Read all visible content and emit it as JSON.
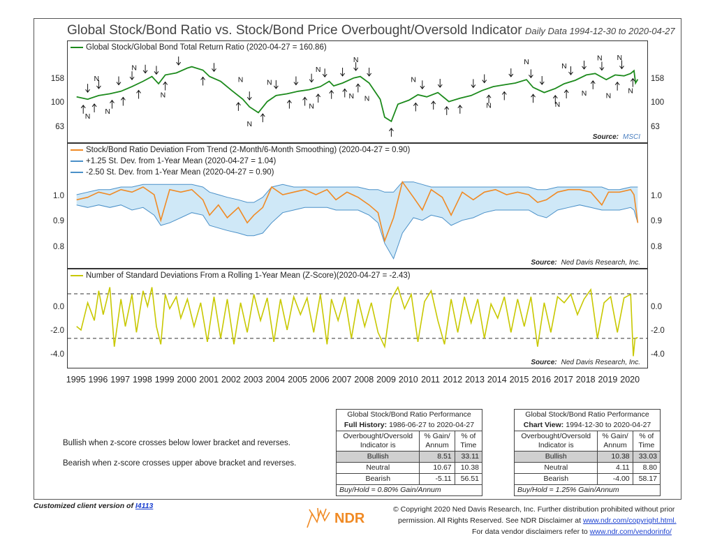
{
  "header": {
    "title": "Global Stock/Bond Ratio vs. Stock/Bond Price Overbought/Oversold Indicator",
    "date_range": "Daily Data 1994-12-30 to 2020-04-27"
  },
  "colors": {
    "green": "#1c8a1c",
    "orange": "#f08a24",
    "blue": "#4a90c8",
    "fill": "#cfe8f7",
    "yellow": "#c8c800"
  },
  "chart_data": [
    {
      "type": "line",
      "panel": "top",
      "legend": "Global Stock/Global Bond Total Return Ratio (2020-04-27 = 160.86)",
      "source_label": "Source:",
      "source_name": "MSCI",
      "y_scale": "log",
      "yticks": [
        "158",
        "100",
        "63"
      ],
      "ylim": [
        55,
        230
      ],
      "series": [
        {
          "name": "Global Stock/Global Bond Total Return Ratio",
          "x": [
            1995.0,
            1995.5,
            1996.0,
            1996.5,
            1997.0,
            1997.5,
            1998.0,
            1998.4,
            1998.7,
            1999.0,
            1999.5,
            2000.0,
            2000.2,
            2000.7,
            2001.0,
            2001.5,
            2002.0,
            2002.5,
            2002.8,
            2003.2,
            2003.6,
            2004.0,
            2004.5,
            2005.0,
            2005.5,
            2006.0,
            2006.4,
            2006.6,
            2007.0,
            2007.5,
            2007.8,
            2008.2,
            2008.7,
            2008.9,
            2009.2,
            2009.5,
            2010.0,
            2010.4,
            2010.8,
            2011.3,
            2011.8,
            2012.3,
            2012.8,
            2013.3,
            2013.8,
            2014.3,
            2014.8,
            2015.3,
            2015.6,
            2016.1,
            2016.6,
            2017.0,
            2017.5,
            2018.0,
            2018.4,
            2018.9,
            2019.3,
            2019.7,
            2020.0,
            2020.15,
            2020.22,
            2020.32
          ],
          "values": [
            115,
            110,
            118,
            122,
            128,
            140,
            155,
            170,
            148,
            175,
            182,
            200,
            205,
            192,
            170,
            155,
            130,
            110,
            95,
            85,
            105,
            118,
            122,
            128,
            132,
            140,
            155,
            142,
            150,
            165,
            170,
            150,
            110,
            78,
            72,
            100,
            108,
            120,
            115,
            125,
            105,
            112,
            118,
            130,
            140,
            145,
            150,
            160,
            138,
            125,
            135,
            148,
            158,
            175,
            180,
            160,
            175,
            172,
            180,
            190,
            150,
            161
          ]
        }
      ],
      "markers_up_years": [
        1995.3,
        1995.8,
        1996.6,
        1997.1,
        1997.8,
        1999.0,
        2000.7,
        2002.3,
        2003.4,
        2004.6,
        2005.3,
        2005.9,
        2006.5,
        2007.1,
        2007.7,
        2009.2,
        2010.3,
        2011.1,
        2011.7,
        2012.3,
        2013.6,
        2014.3,
        2015.6,
        2016.6,
        2017.1,
        2018.3,
        2019.4,
        2020.1
      ],
      "markers_down_years": [
        1995.5,
        1996.0,
        1996.9,
        1997.5,
        1998.1,
        1998.6,
        1999.6,
        2001.2,
        2002.8,
        2004.0,
        2004.9,
        2005.6,
        2006.2,
        2007.0,
        2007.6,
        2008.2,
        2010.6,
        2011.4,
        2012.9,
        2013.4,
        2014.6,
        2015.5,
        2016.0,
        2017.3,
        2017.9,
        2018.7,
        2019.6
      ],
      "n_label": "N",
      "n_years": [
        1995.5,
        1995.9,
        1996.4,
        1997.6,
        1998.9,
        2002.4,
        2002.8,
        2003.7,
        2005.6,
        2005.9,
        2007.4,
        2007.6,
        2008.1,
        2010.2,
        2013.6,
        2015.3,
        2016.7,
        2017.0,
        2017.9,
        2018.6,
        2019.0,
        2019.5,
        2020.0
      ]
    },
    {
      "type": "line",
      "panel": "middle",
      "legends": [
        "Stock/Bond Ratio Deviation From Trend (2-Month/6-Month Smoothing) (2020-04-27 = 0.90)",
        "+1.25 St. Dev. from 1-Year Mean (2020-04-27 = 1.04)",
        "-2.50 St. Dev. from 1-Year Mean (2020-04-27 = 0.90)"
      ],
      "source_label": "Source:",
      "source_name": "Ned Davis Research, Inc.",
      "yticks": [
        "1.0",
        "0.9",
        "0.8"
      ],
      "ylim": [
        0.74,
        1.1
      ],
      "x": [
        1995.0,
        1995.5,
        1996.0,
        1996.5,
        1997.0,
        1997.5,
        1998.0,
        1998.5,
        1998.8,
        1999.2,
        1999.7,
        2000.2,
        2000.7,
        2001.0,
        2001.4,
        2001.8,
        2002.3,
        2002.7,
        2003.0,
        2003.4,
        2003.8,
        2004.3,
        2004.8,
        2005.3,
        2005.8,
        2006.3,
        2006.7,
        2007.2,
        2007.7,
        2008.2,
        2008.6,
        2008.9,
        2009.3,
        2009.7,
        2010.2,
        2010.6,
        2011.0,
        2011.5,
        2011.9,
        2012.4,
        2012.9,
        2013.4,
        2013.9,
        2014.4,
        2014.9,
        2015.4,
        2015.8,
        2016.2,
        2016.7,
        2017.2,
        2017.7,
        2018.2,
        2018.7,
        2019.0,
        2019.5,
        2020.0,
        2020.15,
        2020.32
      ],
      "series": [
        {
          "name": "Stock/Bond Ratio Deviation From Trend (2-Month/6-Month Smoothing)",
          "values": [
            0.99,
            1.0,
            1.02,
            1.01,
            1.03,
            1.02,
            1.04,
            1.01,
            0.91,
            1.03,
            1.02,
            1.03,
            0.99,
            0.93,
            0.97,
            0.92,
            0.96,
            0.9,
            0.93,
            0.96,
            1.04,
            1.01,
            1.02,
            1.03,
            1.01,
            1.03,
            0.99,
            1.02,
            1.0,
            0.97,
            0.94,
            0.83,
            0.92,
            1.06,
            1.0,
            0.95,
            1.03,
            1.0,
            0.93,
            1.02,
            0.99,
            1.02,
            1.03,
            1.01,
            1.02,
            1.01,
            0.98,
            0.99,
            1.02,
            1.03,
            1.03,
            1.02,
            0.97,
            1.02,
            1.02,
            1.03,
            1.01,
            0.9
          ]
        },
        {
          "name": "+1.25 St. Dev. from 1-Year Mean",
          "values": [
            1.01,
            1.02,
            1.03,
            1.03,
            1.04,
            1.04,
            1.05,
            1.05,
            1.05,
            1.05,
            1.05,
            1.05,
            1.04,
            1.02,
            1.01,
            1.0,
            0.99,
            0.98,
            0.98,
            1.0,
            1.04,
            1.05,
            1.04,
            1.04,
            1.04,
            1.04,
            1.04,
            1.04,
            1.04,
            1.03,
            1.03,
            1.02,
            1.02,
            1.06,
            1.06,
            1.05,
            1.04,
            1.04,
            1.04,
            1.04,
            1.04,
            1.04,
            1.04,
            1.04,
            1.04,
            1.04,
            1.03,
            1.03,
            1.04,
            1.04,
            1.04,
            1.04,
            1.04,
            1.03,
            1.03,
            1.04,
            1.04,
            1.04
          ]
        },
        {
          "name": "-2.50 St. Dev. from 1-Year Mean",
          "values": [
            0.97,
            0.96,
            0.97,
            0.96,
            0.97,
            0.95,
            0.96,
            0.93,
            0.89,
            0.9,
            0.92,
            0.94,
            0.93,
            0.89,
            0.88,
            0.87,
            0.86,
            0.85,
            0.85,
            0.86,
            0.9,
            0.94,
            0.95,
            0.96,
            0.96,
            0.96,
            0.95,
            0.95,
            0.95,
            0.93,
            0.9,
            0.82,
            0.76,
            0.86,
            0.92,
            0.91,
            0.93,
            0.92,
            0.89,
            0.91,
            0.92,
            0.94,
            0.95,
            0.95,
            0.95,
            0.95,
            0.93,
            0.92,
            0.95,
            0.96,
            0.97,
            0.96,
            0.95,
            0.95,
            0.95,
            0.96,
            0.95,
            0.9
          ]
        }
      ]
    },
    {
      "type": "line",
      "panel": "bottom",
      "legend": "Number of Standard Deviations From a Rolling 1-Year Mean (Z-Score)(2020-04-27 = -2.43)",
      "source_label": "Source:",
      "source_name": "Ned Davis Research, Inc.",
      "yticks": [
        "0.0",
        "-2.0",
        "-4.0"
      ],
      "ylim": [
        -4.8,
        2.6
      ],
      "upper_bracket": 1.25,
      "lower_bracket": -2.5,
      "series": [
        {
          "name": "Number of Standard Deviations From a Rolling 1-Year Mean (Z-Score)",
          "x": [
            1995.0,
            1995.2,
            1995.5,
            1995.8,
            1996.0,
            1996.2,
            1996.5,
            1996.7,
            1997.0,
            1997.2,
            1997.5,
            1997.7,
            1998.0,
            1998.2,
            1998.4,
            1998.6,
            1998.8,
            1999.0,
            1999.2,
            1999.5,
            1999.7,
            2000.0,
            2000.3,
            2000.6,
            2000.9,
            2001.2,
            2001.5,
            2001.8,
            2002.1,
            2002.4,
            2002.7,
            2003.0,
            2003.3,
            2003.6,
            2003.9,
            2004.2,
            2004.5,
            2004.8,
            2005.1,
            2005.4,
            2005.7,
            2006.0,
            2006.3,
            2006.5,
            2006.8,
            2007.1,
            2007.4,
            2007.7,
            2008.0,
            2008.3,
            2008.6,
            2008.9,
            2009.2,
            2009.5,
            2009.8,
            2010.1,
            2010.4,
            2010.7,
            2011.0,
            2011.3,
            2011.6,
            2011.9,
            2012.2,
            2012.5,
            2012.8,
            2013.1,
            2013.4,
            2013.7,
            2014.0,
            2014.3,
            2014.6,
            2014.9,
            2015.2,
            2015.5,
            2015.8,
            2016.1,
            2016.4,
            2016.7,
            2017.0,
            2017.3,
            2017.6,
            2017.9,
            2018.2,
            2018.5,
            2018.8,
            2019.1,
            2019.4,
            2019.7,
            2020.0,
            2020.12,
            2020.2,
            2020.32
          ],
          "values": [
            -1.5,
            -1.8,
            0.5,
            -1.0,
            1.5,
            -0.5,
            1.8,
            -3.2,
            0.8,
            -1.5,
            1.2,
            -2.0,
            1.5,
            0.2,
            1.8,
            -1.5,
            -3.0,
            1.2,
            0.0,
            1.0,
            -0.8,
            0.8,
            -1.5,
            0.5,
            -2.8,
            1.0,
            -2.5,
            0.8,
            -3.0,
            0.5,
            -2.0,
            1.2,
            -1.0,
            0.9,
            -2.8,
            0.8,
            -1.8,
            1.0,
            -0.5,
            0.9,
            -2.0,
            1.2,
            -3.0,
            0.8,
            -1.0,
            1.0,
            -2.5,
            0.8,
            -1.5,
            0.5,
            -2.0,
            -3.2,
            0.8,
            1.8,
            0.0,
            1.2,
            -2.8,
            0.6,
            1.5,
            -1.0,
            -3.0,
            0.8,
            -2.0,
            1.0,
            -1.2,
            0.8,
            -2.5,
            0.4,
            -0.8,
            1.0,
            -2.0,
            0.8,
            -1.5,
            1.0,
            -3.2,
            0.5,
            -2.0,
            1.0,
            0.5,
            1.2,
            -0.5,
            0.8,
            1.6,
            -2.5,
            0.5,
            1.0,
            -2.0,
            0.9,
            1.2,
            -4.0,
            -2.5,
            -2.43
          ]
        }
      ]
    }
  ],
  "x_axis": {
    "labels": [
      "1995",
      "1996",
      "1997",
      "1998",
      "1999",
      "2000",
      "2001",
      "2002",
      "2003",
      "2004",
      "2005",
      "2006",
      "2007",
      "2008",
      "2009",
      "2010",
      "2011",
      "2012",
      "2013",
      "2014",
      "2015",
      "2016",
      "2017",
      "2018",
      "2019",
      "2020"
    ],
    "xlim": [
      1994.6,
      2020.75
    ]
  },
  "notes": {
    "bullish": "Bullish when z-score crosses below lower bracket and reverses.",
    "bearish": "Bearish when z-score crosses upper above bracket and reverses."
  },
  "table1": {
    "title": "Global Stock/Bond Ratio Performance",
    "subtitle_bold": "Full History:",
    "subtitle": "1986-06-27 to 2020-04-27",
    "col1": "Overbought/Oversold Indicator is",
    "col2": "% Gain/ Annum",
    "col3": "% of Time",
    "rows": [
      {
        "label": "Bullish",
        "gain": "8.51",
        "time": "33.11"
      },
      {
        "label": "Neutral",
        "gain": "10.67",
        "time": "10.38"
      },
      {
        "label": "Bearish",
        "gain": "-5.11",
        "time": "56.51"
      }
    ],
    "footer": "Buy/Hold = 0.80% Gain/Annum"
  },
  "table2": {
    "title": "Global Stock/Bond Ratio Performance",
    "subtitle_bold": "Chart View:",
    "subtitle": "1994-12-30 to 2020-04-27",
    "col1": "Overbought/Oversold Indicator is",
    "col2": "% Gain/ Annum",
    "col3": "% of Time",
    "rows": [
      {
        "label": "Bullish",
        "gain": "10.38",
        "time": "33.03"
      },
      {
        "label": "Neutral",
        "gain": "4.11",
        "time": "8.80"
      },
      {
        "label": "Bearish",
        "gain": "-4.00",
        "time": "58.17"
      }
    ],
    "footer": "Buy/Hold = 1.25% Gain/Annum"
  },
  "footer": {
    "custom": "Customized client version of",
    "custom_link": "I4113",
    "logo": "NDR",
    "copy1": "© Copyright 2020 Ned Davis Research, Inc. Further distribution prohibited without prior",
    "copy2a": "permission. All Rights Reserved. See NDR Disclaimer at",
    "copy2b": "www.ndr.com/copyright.html.",
    "copy3a": "For data vendor disclaimers refer to",
    "copy3b": "www.ndr.com/vendorinfo/"
  }
}
